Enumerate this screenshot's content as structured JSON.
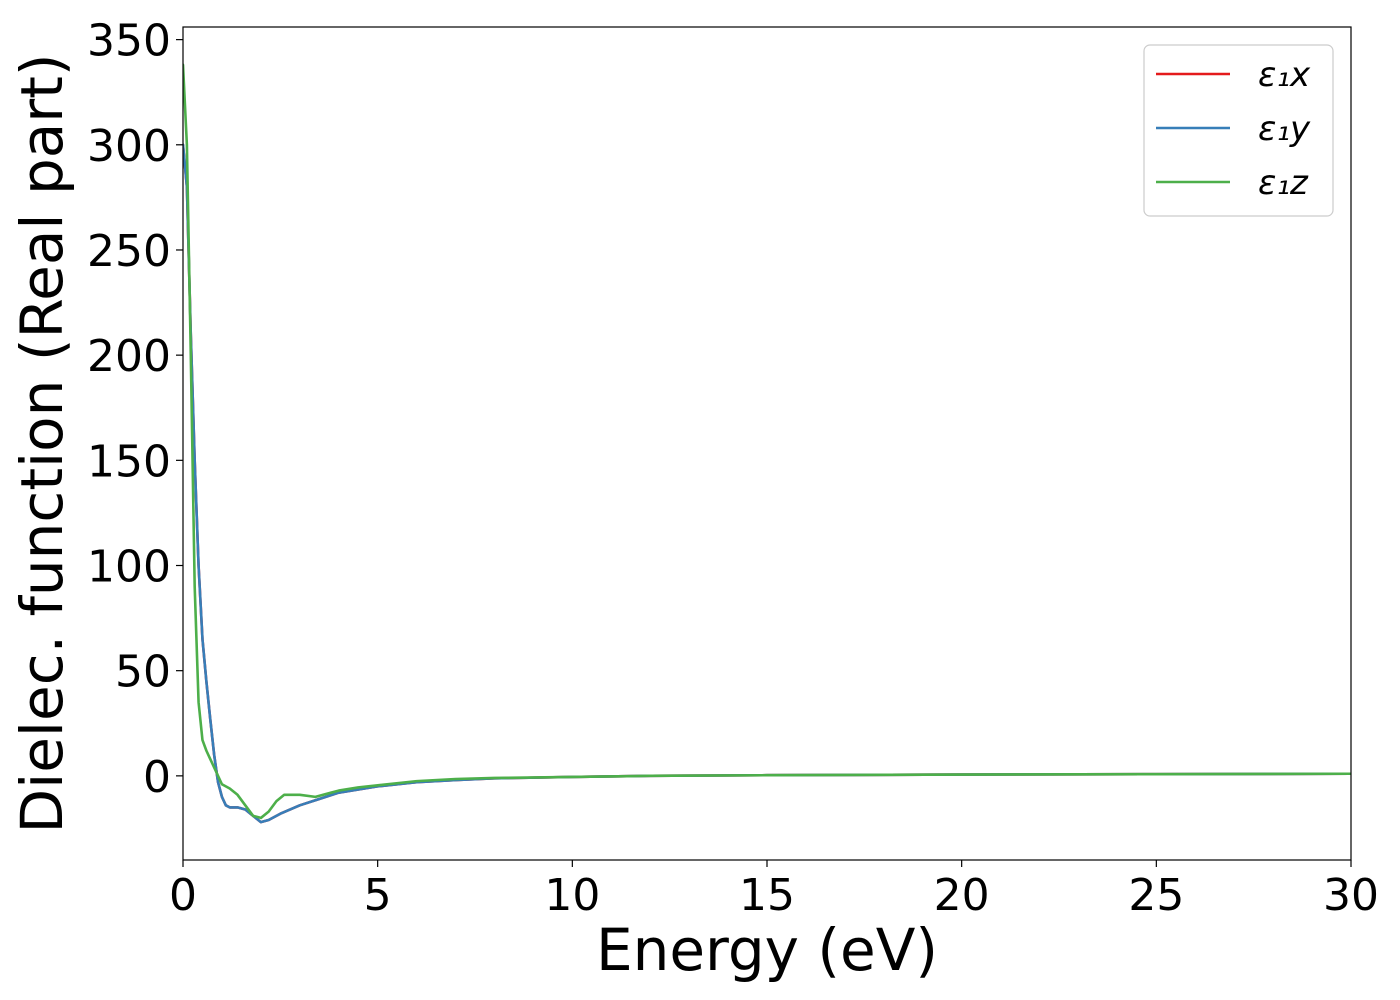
{
  "chart_data": {
    "type": "line",
    "xlabel": "Energy (eV)",
    "ylabel": "Dielec. function (Real part)",
    "xlim": [
      0,
      30
    ],
    "ylim": [
      -40,
      356
    ],
    "xticks": [
      0,
      5,
      10,
      15,
      20,
      25,
      30
    ],
    "yticks": [
      0,
      50,
      100,
      150,
      200,
      250,
      300,
      350
    ],
    "xtick_labels": [
      "0",
      "5",
      "10",
      "15",
      "20",
      "25",
      "30"
    ],
    "ytick_labels": [
      "0",
      "50",
      "100",
      "150",
      "200",
      "250",
      "300",
      "350"
    ],
    "grid": false,
    "legend_position": "top-right",
    "series": [
      {
        "name": "ε₁x",
        "color": "#e41a1c",
        "points": [
          [
            0,
            300
          ],
          [
            0.1,
            280
          ],
          [
            0.2,
            210
          ],
          [
            0.3,
            150
          ],
          [
            0.4,
            100
          ],
          [
            0.5,
            65
          ],
          [
            0.6,
            45
          ],
          [
            0.7,
            27
          ],
          [
            0.8,
            10
          ],
          [
            0.9,
            -3
          ],
          [
            1.0,
            -10
          ],
          [
            1.1,
            -14
          ],
          [
            1.2,
            -15
          ],
          [
            1.4,
            -15
          ],
          [
            1.6,
            -16
          ],
          [
            1.8,
            -19
          ],
          [
            2.0,
            -22
          ],
          [
            2.2,
            -21
          ],
          [
            2.5,
            -18
          ],
          [
            3.0,
            -14
          ],
          [
            3.5,
            -11
          ],
          [
            4.0,
            -8
          ],
          [
            5.0,
            -5
          ],
          [
            6.0,
            -3
          ],
          [
            7.0,
            -2
          ],
          [
            8.0,
            -1.2
          ],
          [
            10,
            -0.5
          ],
          [
            12,
            0
          ],
          [
            15,
            0.3
          ],
          [
            20,
            0.6
          ],
          [
            25,
            0.8
          ],
          [
            30,
            1.0
          ]
        ]
      },
      {
        "name": "ε₁y",
        "color": "#377eb8",
        "points": [
          [
            0,
            300
          ],
          [
            0.1,
            280
          ],
          [
            0.2,
            210
          ],
          [
            0.3,
            150
          ],
          [
            0.4,
            100
          ],
          [
            0.5,
            65
          ],
          [
            0.6,
            45
          ],
          [
            0.7,
            27
          ],
          [
            0.8,
            10
          ],
          [
            0.9,
            -3
          ],
          [
            1.0,
            -10
          ],
          [
            1.1,
            -14
          ],
          [
            1.2,
            -15
          ],
          [
            1.4,
            -15
          ],
          [
            1.6,
            -16
          ],
          [
            1.8,
            -19
          ],
          [
            2.0,
            -22
          ],
          [
            2.2,
            -21
          ],
          [
            2.5,
            -18
          ],
          [
            3.0,
            -14
          ],
          [
            3.5,
            -11
          ],
          [
            4.0,
            -8
          ],
          [
            5.0,
            -5
          ],
          [
            6.0,
            -3
          ],
          [
            7.0,
            -2
          ],
          [
            8.0,
            -1.2
          ],
          [
            10,
            -0.5
          ],
          [
            12,
            0
          ],
          [
            15,
            0.3
          ],
          [
            20,
            0.6
          ],
          [
            25,
            0.8
          ],
          [
            30,
            1.0
          ]
        ]
      },
      {
        "name": "ε₁z",
        "color": "#4daf4a",
        "points": [
          [
            0,
            338
          ],
          [
            0.1,
            300
          ],
          [
            0.2,
            200
          ],
          [
            0.3,
            90
          ],
          [
            0.4,
            35
          ],
          [
            0.5,
            17
          ],
          [
            0.6,
            12
          ],
          [
            0.7,
            8
          ],
          [
            0.8,
            4
          ],
          [
            0.9,
            0
          ],
          [
            1.0,
            -4
          ],
          [
            1.2,
            -6
          ],
          [
            1.4,
            -9
          ],
          [
            1.6,
            -14
          ],
          [
            1.8,
            -19
          ],
          [
            2.0,
            -20
          ],
          [
            2.2,
            -17
          ],
          [
            2.4,
            -12
          ],
          [
            2.6,
            -9
          ],
          [
            3.0,
            -9
          ],
          [
            3.4,
            -10
          ],
          [
            3.8,
            -8
          ],
          [
            4.0,
            -7
          ],
          [
            4.5,
            -5.5
          ],
          [
            5.0,
            -4.5
          ],
          [
            6.0,
            -2.5
          ],
          [
            7.0,
            -1.5
          ],
          [
            8.0,
            -1
          ],
          [
            10,
            -0.5
          ],
          [
            12,
            0
          ],
          [
            15,
            0.3
          ],
          [
            20,
            0.6
          ],
          [
            25,
            0.8
          ],
          [
            30,
            1.0
          ]
        ]
      }
    ]
  },
  "colors": {
    "axes": "#000000",
    "legend_border": "#cccccc",
    "background": "#ffffff"
  }
}
